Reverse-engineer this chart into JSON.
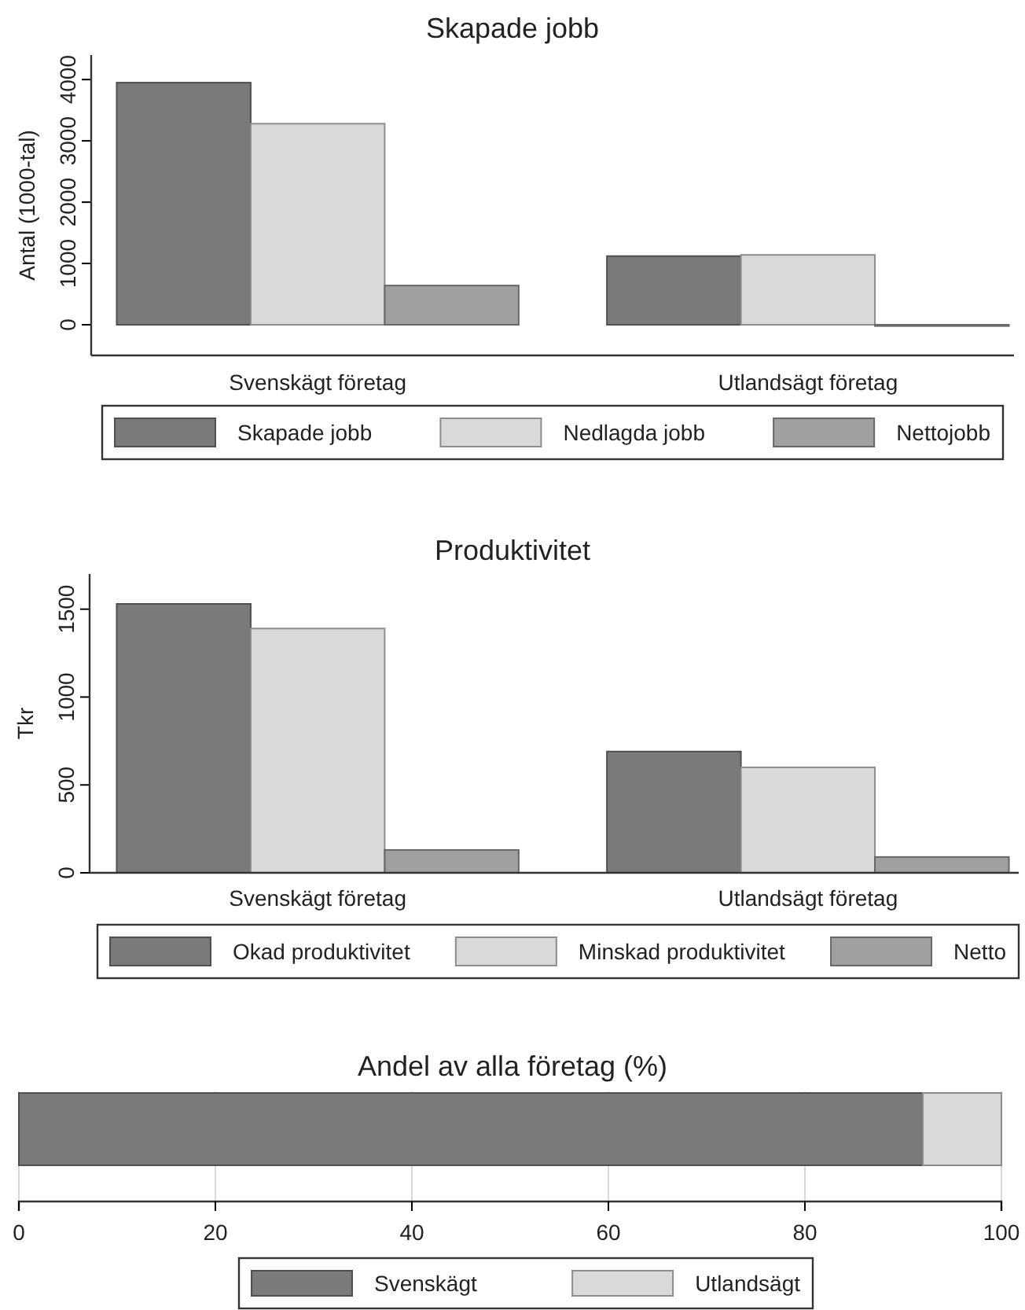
{
  "chart_data": [
    {
      "type": "bar",
      "title": "Skapade jobb",
      "ylabel": "Antal (1000-tal)",
      "categories": [
        "Svenskägt företag",
        "Utlandsägt företag"
      ],
      "series": [
        {
          "name": "Skapade jobb",
          "color": "#7a7a7a",
          "values": [
            3950,
            1120
          ]
        },
        {
          "name": "Nedlagda jobb",
          "color": "#d9d9d9",
          "values": [
            3280,
            1140
          ]
        },
        {
          "name": "Nettojobb",
          "color": "#a0a0a0",
          "values": [
            640,
            0
          ]
        }
      ],
      "ylim": [
        -500,
        4400
      ],
      "yticks": [
        0,
        1000,
        2000,
        3000,
        4000
      ],
      "grid": false,
      "legend": "bottom"
    },
    {
      "type": "bar",
      "title": "Produktivitet",
      "ylabel": "Tkr",
      "categories": [
        "Svenskägt företag",
        "Utlandsägt företag"
      ],
      "series": [
        {
          "name": "Okad produktivitet",
          "color": "#7a7a7a",
          "values": [
            1530,
            690
          ]
        },
        {
          "name": "Minskad produktivitet",
          "color": "#d9d9d9",
          "values": [
            1390,
            600
          ]
        },
        {
          "name": "Netto",
          "color": "#a0a0a0",
          "values": [
            130,
            90
          ]
        }
      ],
      "ylim": [
        0,
        1700
      ],
      "yticks": [
        0,
        500,
        1000,
        1500
      ],
      "grid": false,
      "legend": "bottom"
    },
    {
      "type": "bar",
      "title": "Andel av alla företag (%)",
      "orientation": "horizontal",
      "stacked": true,
      "categories": [
        null
      ],
      "series": [
        {
          "name": "Svenskägt",
          "color": "#7a7a7a",
          "values": [
            92
          ]
        },
        {
          "name": "Utlandsägt",
          "color": "#d9d9d9",
          "values": [
            8
          ]
        }
      ],
      "xlim": [
        0,
        100
      ],
      "xticks": [
        0,
        20,
        40,
        60,
        80,
        100
      ],
      "grid": "x",
      "legend": "bottom"
    }
  ]
}
